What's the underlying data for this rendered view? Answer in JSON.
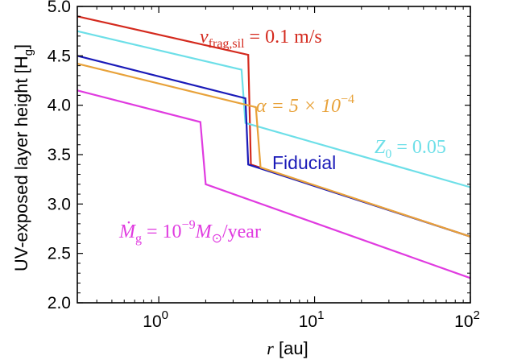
{
  "chart_data": {
    "type": "line",
    "xscale": "log",
    "xlim": [
      0.3,
      100
    ],
    "ylim": [
      2.0,
      5.0
    ],
    "grid": false,
    "xlabel_symbol": "r",
    "xlabel_unit": "[au]",
    "ylabel_main": "UV-exposed layer height [H",
    "ylabel_sub": "g",
    "ylabel_close": "]",
    "x_ticks": [
      {
        "value": 1,
        "base": "10",
        "exp": "0"
      },
      {
        "value": 10,
        "base": "10",
        "exp": "1"
      },
      {
        "value": 100,
        "base": "10",
        "exp": "2"
      }
    ],
    "y_ticks": [
      {
        "value": 2.0,
        "label": "2.0"
      },
      {
        "value": 2.5,
        "label": "2.5"
      },
      {
        "value": 3.0,
        "label": "3.0"
      },
      {
        "value": 3.5,
        "label": "3.5"
      },
      {
        "value": 4.0,
        "label": "4.0"
      },
      {
        "value": 4.5,
        "label": "4.5"
      },
      {
        "value": 5.0,
        "label": "5.0"
      }
    ],
    "series": [
      {
        "key": "vfrag",
        "color": "#d42a1e",
        "points": [
          [
            0.3,
            4.9
          ],
          [
            3.75,
            4.51
          ],
          [
            3.9,
            3.4
          ],
          [
            100,
            2.67
          ]
        ]
      },
      {
        "key": "z0",
        "color": "#6ddfe8",
        "points": [
          [
            0.3,
            4.75
          ],
          [
            3.4,
            4.36
          ],
          [
            3.6,
            3.82
          ],
          [
            100,
            3.17
          ]
        ]
      },
      {
        "key": "fiducial",
        "color": "#1a1ab8",
        "points": [
          [
            0.3,
            4.5
          ],
          [
            3.6,
            4.07
          ],
          [
            3.75,
            3.4
          ],
          [
            100,
            2.67
          ]
        ]
      },
      {
        "key": "alpha",
        "color": "#e8a23a",
        "points": [
          [
            0.3,
            4.42
          ],
          [
            4.2,
            3.98
          ],
          [
            4.5,
            3.37
          ],
          [
            100,
            2.67
          ]
        ]
      },
      {
        "key": "mdot",
        "color": "#e03be0",
        "points": [
          [
            0.3,
            4.15
          ],
          [
            1.85,
            3.83
          ],
          [
            2.0,
            3.2
          ],
          [
            100,
            2.25
          ]
        ]
      }
    ],
    "annotations": {
      "vfrag": {
        "color": "#d42a1e",
        "v": "v",
        "sub": "frag,sil",
        "rest": " = 0.1 m/s"
      },
      "alpha": {
        "color": "#e8a23a",
        "lead": "α = 5 × 10",
        "exp": "−4"
      },
      "z0": {
        "color": "#6ddfe8",
        "z": "Z",
        "sub": "0",
        "rest": " = 0.05"
      },
      "fiducial": {
        "color": "#1a1ab8",
        "text": "Fiducial"
      },
      "mdot": {
        "color": "#e03be0",
        "m": "Ṁ",
        "sub": "g",
        "mid": " = 10",
        "exp": "−9",
        "msym": "M",
        "msub": "⊙",
        "rest": "/year"
      }
    }
  }
}
